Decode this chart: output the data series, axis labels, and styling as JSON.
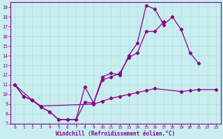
{
  "bg_color": "#c8eef0",
  "line_color": "#880088",
  "grid_color": "#b8dce0",
  "xlabel": "Windchill (Refroidissement éolien,°C)",
  "tick_color": "#880088",
  "ylim": [
    7,
    19.5
  ],
  "xlim": [
    -0.5,
    23.5
  ],
  "yticks": [
    7,
    8,
    9,
    10,
    11,
    12,
    13,
    14,
    15,
    16,
    17,
    18,
    19
  ],
  "xticks": [
    0,
    1,
    2,
    3,
    4,
    5,
    6,
    7,
    8,
    9,
    10,
    11,
    12,
    13,
    14,
    15,
    16,
    17,
    18,
    19,
    20,
    21,
    22,
    23
  ],
  "line1_x": [
    0,
    1,
    2,
    3,
    4,
    5,
    6,
    7,
    8,
    9,
    10,
    11,
    12,
    13,
    14,
    15,
    16,
    17,
    18,
    19,
    20,
    21
  ],
  "line1_y": [
    11.0,
    9.8,
    9.4,
    8.7,
    8.2,
    7.4,
    7.4,
    7.4,
    10.8,
    9.1,
    11.8,
    12.2,
    12.0,
    14.0,
    15.3,
    19.2,
    18.8,
    17.2,
    18.0,
    16.7,
    14.3,
    13.2
  ],
  "line2_x": [
    0,
    1,
    2,
    3,
    4,
    5,
    6,
    7,
    8,
    9,
    10,
    11,
    12,
    13,
    14,
    15,
    16,
    17
  ],
  "line2_y": [
    11.0,
    9.8,
    9.4,
    8.7,
    8.2,
    7.4,
    7.4,
    7.4,
    9.2,
    9.1,
    11.5,
    11.8,
    12.2,
    13.8,
    14.3,
    16.5,
    16.5,
    17.5
  ],
  "line3_x": [
    0,
    2,
    3,
    9,
    10,
    11,
    12,
    13,
    14,
    15,
    16,
    19,
    20,
    21,
    23
  ],
  "line3_y": [
    11.0,
    9.4,
    8.8,
    9.0,
    9.3,
    9.6,
    9.8,
    10.0,
    10.2,
    10.4,
    10.6,
    10.3,
    10.4,
    10.5,
    10.5
  ]
}
